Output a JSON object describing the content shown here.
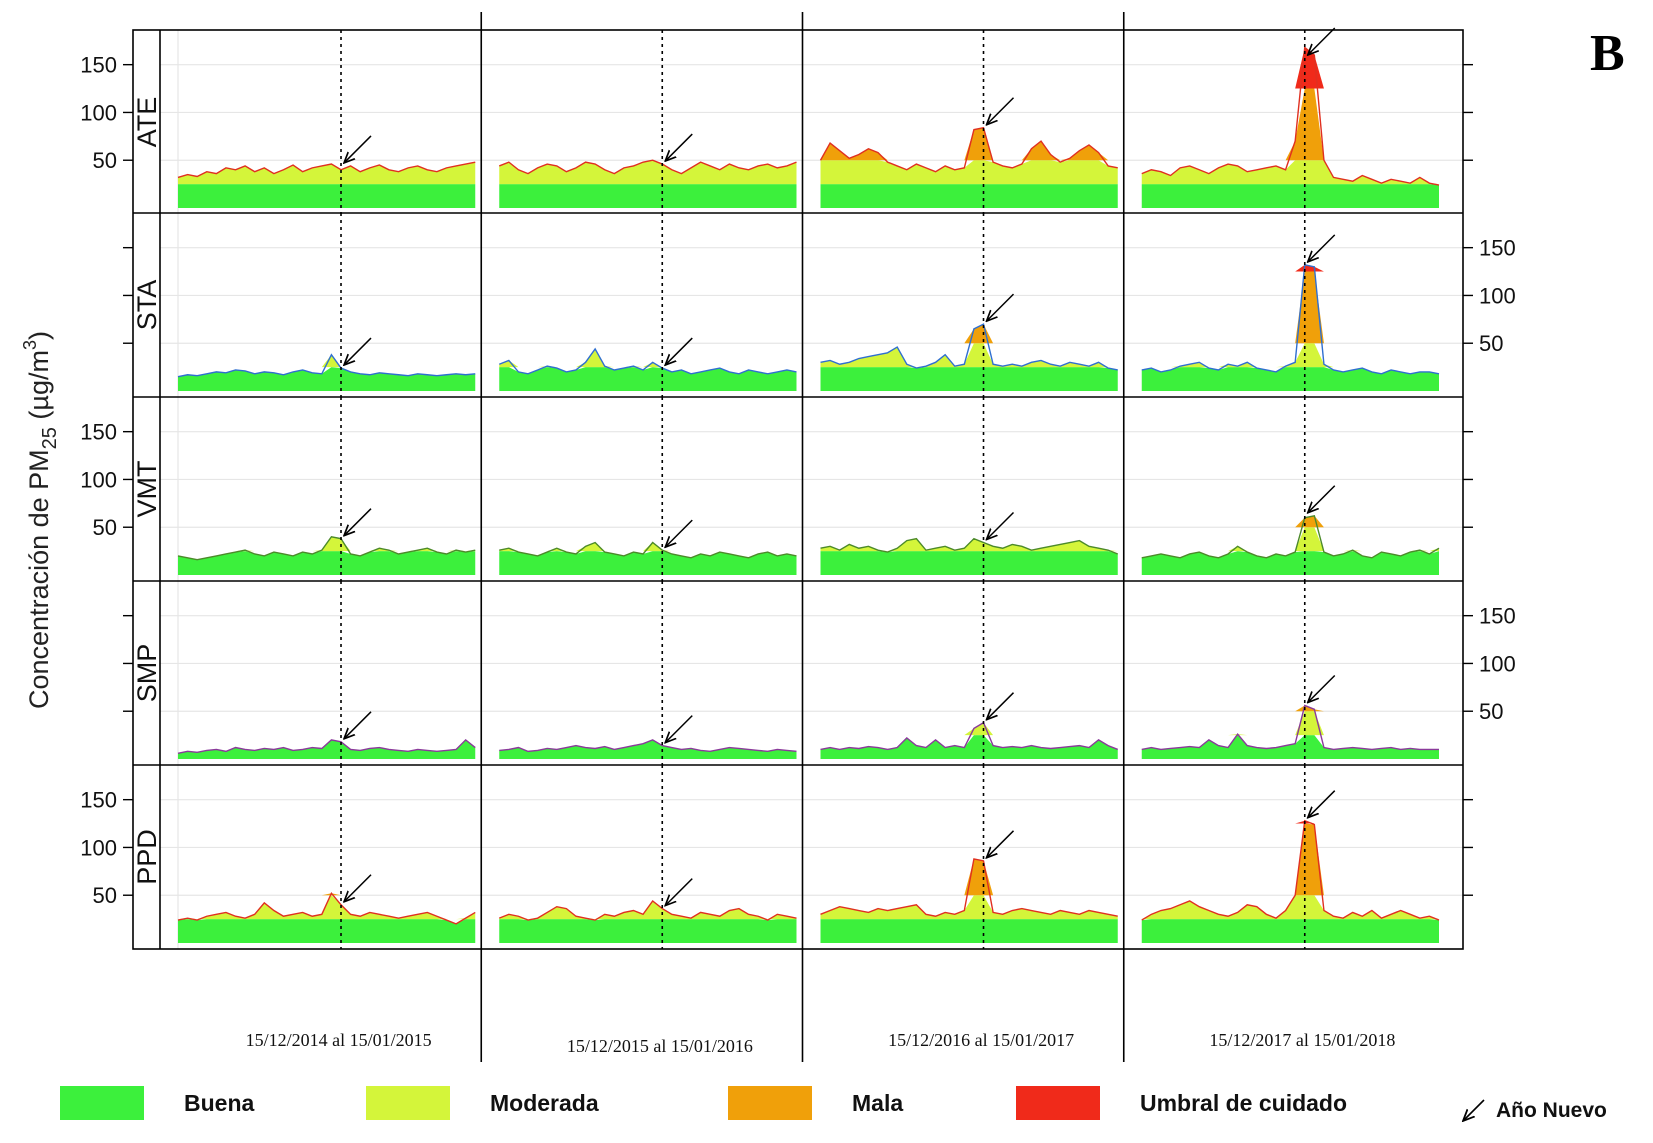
{
  "panel_letter": "B",
  "chart_data": {
    "type": "area",
    "ylabel": "Concentración de PM25 (µg/m3)",
    "ylabel_main": "Concentración de PM",
    "ylabel_sub": "25",
    "ylabel_unit_open": " (µg/m",
    "ylabel_sup": "3",
    "ylabel_unit_close": ")",
    "ylim": [
      0,
      180
    ],
    "y_ticks": [
      50,
      100,
      150
    ],
    "y_tick_labels": [
      "50",
      "100",
      "150"
    ],
    "grid": true,
    "stations": [
      "ATE",
      "STA",
      "VMT",
      "SMP",
      "PPD"
    ],
    "periods": [
      "15/12/2014 al 15/01/2015",
      "15/12/2015 al 15/01/2016",
      "15/12/2016 al 15/01/2017",
      "15/12/2017 al 15/01/2018"
    ],
    "days_per_period": 32,
    "new_year_day_index": 17,
    "thresholds": {
      "buena": 25,
      "moderada": 50,
      "mala": 125
    },
    "colors": {
      "buena": "#3cf03c",
      "moderada": "#d4f53a",
      "mala": "#f0a00a",
      "umbral": "#f02a1a",
      "line": "#e03020"
    },
    "station_line_colors": {
      "ATE": "#e03020",
      "STA": "#2f6fd0",
      "VMT": "#4c8a2a",
      "SMP": "#8a3a9a",
      "PPD": "#e03020"
    },
    "series": [
      {
        "station": "ATE",
        "period": 0,
        "values": [
          32,
          35,
          33,
          38,
          36,
          42,
          40,
          44,
          38,
          42,
          36,
          40,
          45,
          38,
          42,
          44,
          46,
          40,
          44,
          38,
          42,
          45,
          40,
          38,
          42,
          44,
          40,
          38,
          42,
          44,
          46,
          48
        ]
      },
      {
        "station": "ATE",
        "period": 1,
        "values": [
          44,
          48,
          40,
          36,
          42,
          46,
          44,
          38,
          42,
          48,
          46,
          40,
          36,
          42,
          44,
          48,
          50,
          46,
          40,
          36,
          42,
          48,
          44,
          40,
          46,
          42,
          40,
          44,
          46,
          42,
          44,
          48
        ]
      },
      {
        "station": "ATE",
        "period": 2,
        "values": [
          50,
          68,
          60,
          52,
          56,
          62,
          58,
          48,
          44,
          40,
          46,
          42,
          38,
          44,
          40,
          42,
          82,
          84,
          48,
          44,
          42,
          46,
          62,
          70,
          56,
          48,
          52,
          60,
          66,
          58,
          44,
          42
        ]
      },
      {
        "station": "ATE",
        "period": 3,
        "values": [
          36,
          40,
          38,
          34,
          42,
          44,
          40,
          36,
          42,
          46,
          44,
          38,
          40,
          42,
          44,
          40,
          70,
          168,
          160,
          50,
          32,
          30,
          28,
          34,
          30,
          26,
          30,
          28,
          26,
          32,
          26,
          24
        ]
      },
      {
        "station": "STA",
        "period": 0,
        "values": [
          15,
          17,
          16,
          18,
          20,
          19,
          22,
          21,
          18,
          20,
          19,
          17,
          20,
          22,
          19,
          18,
          38,
          24,
          20,
          18,
          17,
          19,
          18,
          17,
          16,
          18,
          17,
          16,
          17,
          18,
          17,
          18
        ]
      },
      {
        "station": "STA",
        "period": 1,
        "values": [
          28,
          32,
          20,
          18,
          22,
          26,
          24,
          20,
          22,
          30,
          44,
          26,
          22,
          24,
          26,
          22,
          30,
          24,
          20,
          22,
          18,
          20,
          22,
          24,
          20,
          18,
          22,
          20,
          18,
          20,
          22,
          20
        ]
      },
      {
        "station": "STA",
        "period": 2,
        "values": [
          30,
          32,
          28,
          30,
          34,
          36,
          38,
          40,
          46,
          28,
          24,
          26,
          30,
          38,
          26,
          28,
          65,
          70,
          28,
          26,
          28,
          26,
          30,
          32,
          28,
          26,
          30,
          28,
          26,
          30,
          24,
          22
        ]
      },
      {
        "station": "STA",
        "period": 3,
        "values": [
          22,
          24,
          20,
          22,
          26,
          28,
          30,
          24,
          22,
          28,
          26,
          30,
          24,
          22,
          20,
          26,
          30,
          132,
          130,
          28,
          22,
          20,
          22,
          24,
          20,
          18,
          22,
          20,
          18,
          20,
          20,
          18
        ]
      },
      {
        "station": "VMT",
        "period": 0,
        "values": [
          20,
          18,
          16,
          18,
          20,
          22,
          24,
          26,
          22,
          20,
          24,
          22,
          20,
          24,
          22,
          26,
          40,
          38,
          22,
          20,
          24,
          28,
          26,
          22,
          24,
          26,
          28,
          24,
          22,
          26,
          24,
          26
        ]
      },
      {
        "station": "VMT",
        "period": 1,
        "values": [
          26,
          28,
          24,
          22,
          20,
          24,
          28,
          24,
          22,
          30,
          34,
          24,
          22,
          20,
          24,
          22,
          34,
          26,
          22,
          20,
          18,
          22,
          20,
          24,
          22,
          20,
          18,
          22,
          24,
          20,
          22,
          20
        ]
      },
      {
        "station": "VMT",
        "period": 2,
        "values": [
          28,
          30,
          26,
          32,
          28,
          30,
          26,
          24,
          28,
          36,
          38,
          26,
          28,
          30,
          26,
          28,
          38,
          34,
          30,
          28,
          32,
          30,
          26,
          28,
          30,
          32,
          34,
          36,
          30,
          28,
          26,
          22
        ]
      },
      {
        "station": "VMT",
        "period": 3,
        "values": [
          18,
          20,
          22,
          20,
          18,
          22,
          24,
          20,
          18,
          22,
          30,
          24,
          20,
          18,
          22,
          20,
          24,
          60,
          62,
          24,
          20,
          22,
          26,
          20,
          18,
          24,
          22,
          20,
          24,
          26,
          22,
          28
        ]
      },
      {
        "station": "SMP",
        "period": 0,
        "values": [
          6,
          8,
          7,
          9,
          10,
          8,
          12,
          10,
          9,
          11,
          10,
          12,
          9,
          10,
          12,
          11,
          20,
          18,
          10,
          9,
          11,
          12,
          10,
          9,
          8,
          10,
          9,
          8,
          9,
          10,
          20,
          12
        ]
      },
      {
        "station": "SMP",
        "period": 1,
        "values": [
          9,
          10,
          12,
          8,
          9,
          11,
          10,
          12,
          14,
          12,
          11,
          13,
          10,
          12,
          14,
          16,
          20,
          14,
          12,
          10,
          11,
          9,
          8,
          10,
          12,
          11,
          10,
          9,
          8,
          10,
          9,
          8
        ]
      },
      {
        "station": "SMP",
        "period": 2,
        "values": [
          10,
          12,
          10,
          12,
          11,
          13,
          12,
          10,
          12,
          22,
          14,
          12,
          20,
          12,
          14,
          12,
          32,
          38,
          14,
          12,
          13,
          12,
          14,
          12,
          11,
          12,
          13,
          14,
          12,
          20,
          14,
          10
        ]
      },
      {
        "station": "SMP",
        "period": 3,
        "values": [
          10,
          12,
          10,
          11,
          12,
          13,
          12,
          20,
          14,
          12,
          26,
          14,
          12,
          11,
          12,
          14,
          16,
          56,
          52,
          12,
          10,
          11,
          12,
          11,
          10,
          11,
          12,
          10,
          11,
          10,
          10,
          10
        ]
      },
      {
        "station": "PPD",
        "period": 0,
        "values": [
          24,
          26,
          24,
          28,
          30,
          32,
          28,
          26,
          30,
          42,
          34,
          28,
          30,
          32,
          28,
          30,
          52,
          40,
          30,
          28,
          32,
          30,
          28,
          26,
          28,
          30,
          32,
          28,
          24,
          20,
          26,
          32
        ]
      },
      {
        "station": "PPD",
        "period": 1,
        "values": [
          26,
          30,
          28,
          24,
          26,
          32,
          38,
          36,
          28,
          26,
          24,
          30,
          28,
          32,
          34,
          30,
          44,
          36,
          30,
          28,
          26,
          32,
          30,
          28,
          34,
          36,
          30,
          28,
          24,
          30,
          28,
          26
        ]
      },
      {
        "station": "PPD",
        "period": 2,
        "values": [
          30,
          34,
          38,
          36,
          34,
          32,
          36,
          34,
          36,
          38,
          40,
          30,
          28,
          32,
          30,
          34,
          88,
          86,
          32,
          30,
          34,
          36,
          34,
          32,
          30,
          34,
          32,
          30,
          34,
          32,
          30,
          28
        ]
      },
      {
        "station": "PPD",
        "period": 3,
        "values": [
          24,
          30,
          34,
          36,
          40,
          44,
          38,
          34,
          30,
          28,
          32,
          40,
          38,
          30,
          26,
          34,
          50,
          128,
          124,
          34,
          28,
          26,
          32,
          28,
          34,
          26,
          30,
          34,
          30,
          26,
          28,
          24
        ]
      }
    ]
  },
  "legend": {
    "items": [
      {
        "key": "buena",
        "label": "Buena"
      },
      {
        "key": "moderada",
        "label": "Moderada"
      },
      {
        "key": "mala",
        "label": "Mala"
      },
      {
        "key": "umbral",
        "label": "Umbral de cuidado"
      }
    ],
    "new_year_label": "Año Nuevo"
  }
}
